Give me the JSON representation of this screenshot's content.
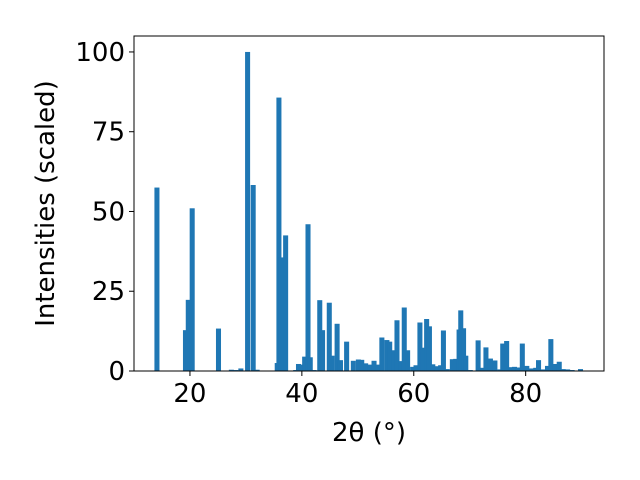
{
  "chart_data": {
    "type": "bar",
    "xlabel": "2θ (°)",
    "ylabel": "Intensities (scaled)",
    "xlim": [
      10,
      94
    ],
    "ylim": [
      0,
      105
    ],
    "xticks": [
      20,
      40,
      60,
      80
    ],
    "yticks": [
      0,
      25,
      50,
      75,
      100
    ],
    "grid": false,
    "bar_width": 0.9,
    "color": "#1f77b4",
    "x": [
      14.1,
      19.2,
      19.7,
      20.4,
      25.1,
      27.4,
      28.2,
      29.1,
      30.3,
      31.3,
      32.0,
      35.6,
      35.9,
      36.3,
      37.1,
      38.9,
      39.4,
      39.8,
      40.5,
      41.1,
      41.5,
      42.2,
      43.2,
      43.7,
      44.9,
      45.4,
      46.3,
      46.9,
      48.0,
      49.2,
      50.1,
      50.7,
      51.4,
      52.2,
      52.9,
      53.6,
      54.3,
      55.2,
      55.7,
      56.4,
      57.0,
      57.7,
      58.3,
      58.9,
      59.8,
      60.4,
      61.1,
      61.7,
      62.3,
      62.8,
      63.4,
      64.1,
      64.8,
      65.3,
      66.0,
      66.9,
      67.5,
      68.1,
      68.4,
      68.9,
      69.3,
      70.1,
      71.5,
      72.3,
      72.9,
      73.7,
      74.5,
      75.4,
      75.9,
      76.6,
      77.3,
      78.0,
      78.7,
      79.4,
      80.2,
      81.0,
      81.8,
      82.3,
      83.1,
      83.9,
      84.5,
      85.3,
      86.0,
      86.7,
      87.5,
      88.3,
      89.8
    ],
    "values": [
      57.5,
      12.8,
      22.3,
      51.0,
      13.3,
      0.4,
      0.3,
      0.8,
      100.0,
      58.3,
      0.4,
      2.5,
      85.7,
      35.6,
      42.5,
      0.3,
      2.2,
      2.0,
      4.5,
      46.0,
      4.3,
      0.3,
      22.2,
      12.8,
      21.4,
      4.8,
      14.8,
      3.4,
      9.2,
      3.2,
      3.6,
      3.5,
      2.4,
      2.0,
      3.2,
      2.0,
      10.5,
      9.7,
      9.2,
      6.5,
      15.9,
      3.1,
      19.9,
      6.5,
      1.3,
      1.8,
      15.2,
      7.3,
      16.3,
      14.0,
      2.1,
      1.5,
      1.8,
      12.7,
      0.6,
      3.7,
      3.8,
      13.0,
      19.0,
      13.4,
      4.8,
      0.3,
      9.6,
      1.0,
      7.4,
      3.9,
      3.3,
      0.5,
      8.6,
      9.4,
      1.2,
      1.3,
      1.1,
      8.6,
      1.6,
      0.8,
      1.0,
      3.4,
      0.5,
      1.6,
      10.0,
      2.2,
      2.9,
      0.6,
      0.5,
      0.3,
      0.6
    ]
  }
}
